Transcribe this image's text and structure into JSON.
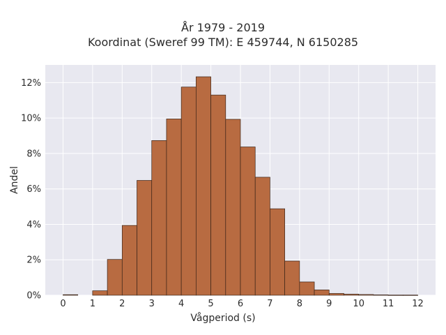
{
  "chart_data": {
    "type": "bar",
    "title": "År 1979 - 2019",
    "subtitle": "Koordinat (Sweref 99 TM): E 459744, N 6150285",
    "xlabel": "Vågperiod (s)",
    "ylabel": "Andel",
    "xlim": [
      -0.6,
      12.6
    ],
    "ylim": [
      0,
      0.13
    ],
    "x_ticks": [
      0,
      1,
      2,
      3,
      4,
      5,
      6,
      7,
      8,
      9,
      10,
      11,
      12
    ],
    "y_ticks": [
      0,
      0.02,
      0.04,
      0.06,
      0.08,
      0.1,
      0.12
    ],
    "y_tick_labels": [
      "0%",
      "2%",
      "4%",
      "6%",
      "8%",
      "10%",
      "12%"
    ],
    "bin_width": 0.5,
    "bins": [
      {
        "x0": 0.0,
        "value": 0.0003
      },
      {
        "x0": 1.0,
        "value": 0.0025
      },
      {
        "x0": 1.5,
        "value": 0.0202
      },
      {
        "x0": 2.0,
        "value": 0.0394
      },
      {
        "x0": 2.5,
        "value": 0.0648
      },
      {
        "x0": 3.0,
        "value": 0.0873
      },
      {
        "x0": 3.5,
        "value": 0.0995
      },
      {
        "x0": 4.0,
        "value": 0.1175
      },
      {
        "x0": 4.5,
        "value": 0.1233
      },
      {
        "x0": 5.0,
        "value": 0.113
      },
      {
        "x0": 5.5,
        "value": 0.0993
      },
      {
        "x0": 6.0,
        "value": 0.0837
      },
      {
        "x0": 6.5,
        "value": 0.0666
      },
      {
        "x0": 7.0,
        "value": 0.0488
      },
      {
        "x0": 7.5,
        "value": 0.0193
      },
      {
        "x0": 8.0,
        "value": 0.0075
      },
      {
        "x0": 8.5,
        "value": 0.003
      },
      {
        "x0": 9.0,
        "value": 0.001
      },
      {
        "x0": 9.5,
        "value": 0.0006
      },
      {
        "x0": 10.0,
        "value": 0.0004
      },
      {
        "x0": 10.5,
        "value": 0.0002
      },
      {
        "x0": 11.0,
        "value": 0.0001
      },
      {
        "x0": 11.5,
        "value": 0.0001
      }
    ],
    "grid": true,
    "colors": {
      "bar_fill": "#b86b41",
      "bar_stroke": "#3a2418",
      "plot_background": "#e8e8f0",
      "grid": "#ffffff"
    }
  }
}
